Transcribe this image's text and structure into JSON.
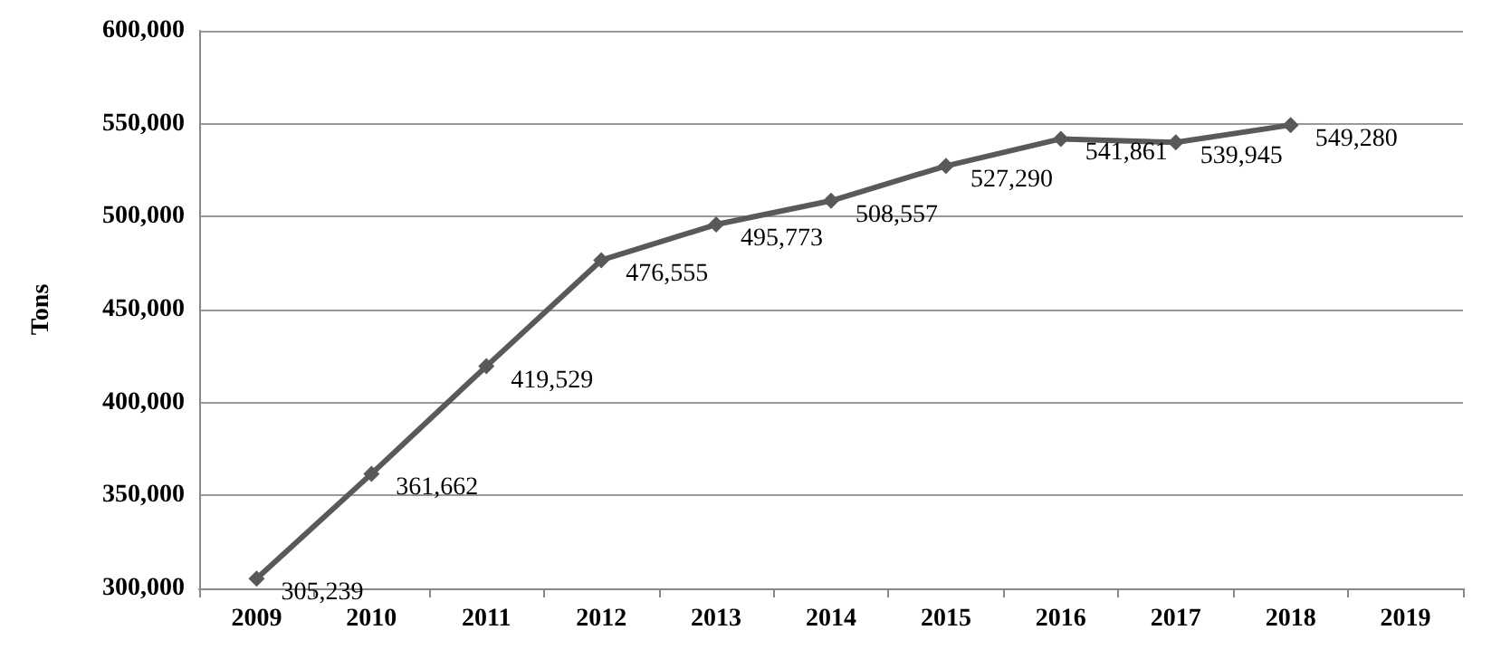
{
  "chart_data": {
    "type": "line",
    "ylabel": "Tons",
    "categories": [
      "2009",
      "2010",
      "2011",
      "2012",
      "2013",
      "2014",
      "2015",
      "2016",
      "2017",
      "2018",
      "2019"
    ],
    "series": [
      {
        "color": "#595959",
        "values": [
          305239,
          361662,
          419529,
          476555,
          495773,
          508557,
          527290,
          541861,
          539945,
          549280,
          null
        ],
        "value_labels": [
          "305,239",
          "361,662",
          "419,529",
          "476,555",
          "495,773",
          "508,557",
          "527,290",
          "541,861",
          "539,945",
          "549,280",
          null
        ]
      }
    ],
    "ylim": [
      300000,
      600000
    ],
    "yticks": [
      {
        "value": 300000,
        "label": "300,000"
      },
      {
        "value": 350000,
        "label": "350,000"
      },
      {
        "value": 400000,
        "label": "400,000"
      },
      {
        "value": 450000,
        "label": "450,000"
      },
      {
        "value": 500000,
        "label": "500,000"
      },
      {
        "value": 550000,
        "label": "550,000"
      },
      {
        "value": 600000,
        "label": "600,000"
      }
    ],
    "grid": "y",
    "marker": "diamond",
    "line_style": "solid"
  }
}
